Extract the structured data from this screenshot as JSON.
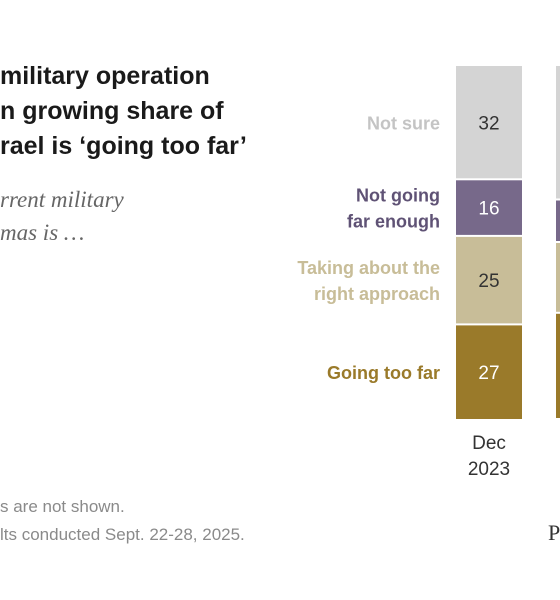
{
  "header": {
    "title_lines": [
      "military operation",
      "n growing share of",
      "rael is ‘going too far’"
    ],
    "subtitle_lines": [
      "rrent military",
      "mas is …"
    ]
  },
  "notes": {
    "line1": "s are not shown.",
    "line2": "lts conducted Sept. 22-28, 2025."
  },
  "logo": "P",
  "chart_data": {
    "type": "bar",
    "stacked": true,
    "orientation": "vertical",
    "categories": [
      "Dec\n2023"
    ],
    "series": [
      {
        "name": "Going too far",
        "values": [
          27
        ],
        "color": "#9a7a2a"
      },
      {
        "name": "Taking about the right approach",
        "values": [
          25
        ],
        "color": "#c8bd98"
      },
      {
        "name": "Not going far enough",
        "values": [
          16
        ],
        "color": "#77698a"
      },
      {
        "name": "Not sure",
        "values": [
          32
        ],
        "color": "#d4d4d4"
      }
    ],
    "legend_labels": [
      {
        "lines": [
          "Going too far"
        ],
        "color": "#9a7a2a"
      },
      {
        "lines": [
          "Taking about the",
          "right approach"
        ],
        "color": "#c8bd98"
      },
      {
        "lines": [
          "Not going",
          "far enough"
        ],
        "color": "#5f5275"
      },
      {
        "lines": [
          "Not sure"
        ],
        "color": "#c4c4c4"
      }
    ],
    "ylim": [
      0,
      100
    ],
    "value_label_colors": [
      "#ffffff",
      "#333333",
      "#ffffff",
      "#333333"
    ]
  }
}
